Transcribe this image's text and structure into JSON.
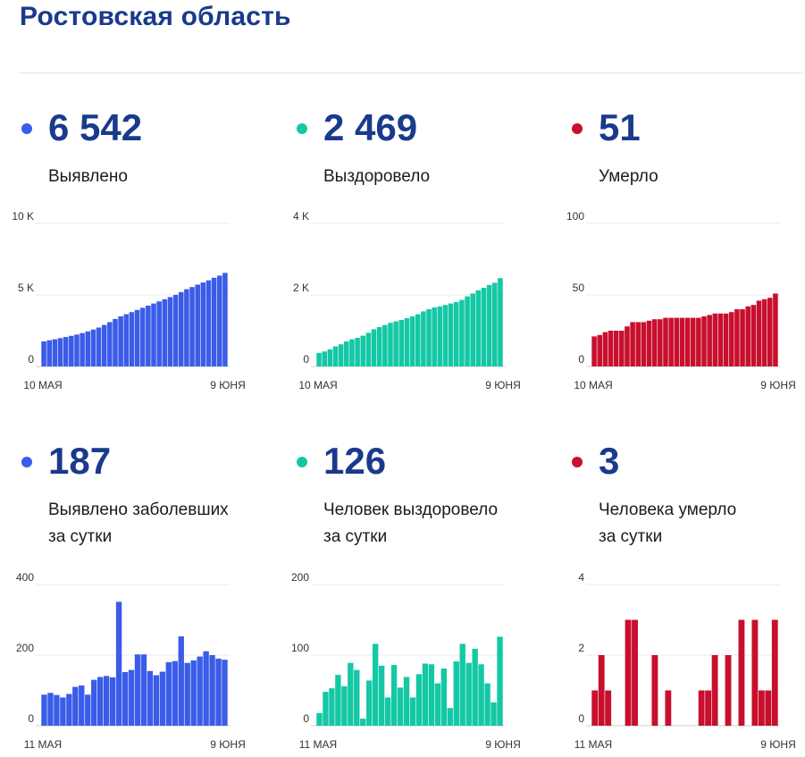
{
  "page": {
    "title": "Ростовская область"
  },
  "stats": [
    {
      "value": "6 542",
      "label": "Выявлено",
      "label2": "",
      "color": "#3b5ce8"
    },
    {
      "value": "2 469",
      "label": "Выздоровело",
      "label2": "",
      "color": "#14c8a5"
    },
    {
      "value": "51",
      "label": "Умерло",
      "label2": "",
      "color": "#c8102e"
    },
    {
      "value": "187",
      "label": "Выявлено заболевших",
      "label2": "за сутки",
      "color": "#3b5ce8"
    },
    {
      "value": "126",
      "label": "Человек выздоровело",
      "label2": "за сутки",
      "color": "#14c8a5"
    },
    {
      "value": "3",
      "label": "Человека умерло",
      "label2": "за сутки",
      "color": "#c8102e"
    }
  ],
  "chart_data": [
    {
      "type": "bar",
      "color": "#3b5ce8",
      "x_start_label": "10 МАЯ",
      "x_end_label": "9 ЮНЯ",
      "ylim": [
        0,
        10000
      ],
      "yticks": [
        0,
        5000,
        10000
      ],
      "ytick_labels": [
        "0",
        "5 K",
        "10 K"
      ],
      "values": [
        1750,
        1830,
        1900,
        1980,
        2060,
        2140,
        2230,
        2330,
        2450,
        2580,
        2720,
        2900,
        3100,
        3320,
        3500,
        3650,
        3800,
        3950,
        4100,
        4250,
        4400,
        4550,
        4700,
        4850,
        5000,
        5200,
        5400,
        5550,
        5720,
        5870,
        6020,
        6200,
        6350,
        6542
      ]
    },
    {
      "type": "bar",
      "color": "#14c8a5",
      "x_start_label": "10 МАЯ",
      "x_end_label": "9 ЮНЯ",
      "ylim": [
        0,
        4000
      ],
      "yticks": [
        0,
        2000,
        4000
      ],
      "ytick_labels": [
        "0",
        "2 K",
        "4 K"
      ],
      "values": [
        380,
        420,
        480,
        560,
        620,
        700,
        760,
        800,
        860,
        940,
        1040,
        1100,
        1160,
        1220,
        1260,
        1300,
        1350,
        1400,
        1460,
        1540,
        1600,
        1650,
        1680,
        1720,
        1760,
        1800,
        1860,
        1960,
        2040,
        2130,
        2200,
        2280,
        2340,
        2469
      ]
    },
    {
      "type": "bar",
      "color": "#c8102e",
      "x_start_label": "10 МАЯ",
      "x_end_label": "9 ЮНЯ",
      "ylim": [
        0,
        100
      ],
      "yticks": [
        0,
        50,
        100
      ],
      "ytick_labels": [
        "0",
        "50",
        "100"
      ],
      "values": [
        21,
        22,
        24,
        25,
        25,
        25,
        28,
        31,
        31,
        31,
        32,
        33,
        33,
        34,
        34,
        34,
        34,
        34,
        34,
        34,
        35,
        36,
        37,
        37,
        37,
        38,
        40,
        40,
        42,
        43,
        46,
        47,
        48,
        51
      ]
    },
    {
      "type": "bar",
      "color": "#3b5ce8",
      "x_start_label": "11 МАЯ",
      "x_end_label": "9 ЮНЯ",
      "ylim": [
        0,
        400
      ],
      "yticks": [
        0,
        200,
        400
      ],
      "ytick_labels": [
        "0",
        "200",
        "400"
      ],
      "values": [
        88,
        93,
        87,
        80,
        90,
        110,
        114,
        88,
        130,
        138,
        141,
        137,
        351,
        152,
        158,
        202,
        202,
        155,
        143,
        153,
        180,
        183,
        253,
        178,
        185,
        196,
        211,
        200,
        190,
        187
      ]
    },
    {
      "type": "bar",
      "color": "#14c8a5",
      "x_start_label": "11 МАЯ",
      "x_end_label": "9 ЮНЯ",
      "ylim": [
        0,
        200
      ],
      "yticks": [
        0,
        100,
        200
      ],
      "ytick_labels": [
        "0",
        "100",
        "200"
      ],
      "values": [
        18,
        48,
        53,
        72,
        56,
        89,
        79,
        10,
        64,
        116,
        85,
        40,
        86,
        54,
        69,
        40,
        73,
        88,
        87,
        60,
        81,
        25,
        91,
        116,
        89,
        109,
        87,
        60,
        33,
        126
      ]
    },
    {
      "type": "bar",
      "color": "#c8102e",
      "x_start_label": "11 МАЯ",
      "x_end_label": "9 ЮНЯ",
      "ylim": [
        0,
        4
      ],
      "yticks": [
        0,
        2,
        4
      ],
      "ytick_labels": [
        "0",
        "2",
        "4"
      ],
      "values": [
        1,
        2,
        1,
        0,
        0,
        3,
        3,
        0,
        0,
        2,
        0,
        1,
        0,
        0,
        0,
        0,
        1,
        1,
        2,
        0,
        2,
        0,
        3,
        0,
        3,
        1,
        1,
        3
      ]
    }
  ]
}
